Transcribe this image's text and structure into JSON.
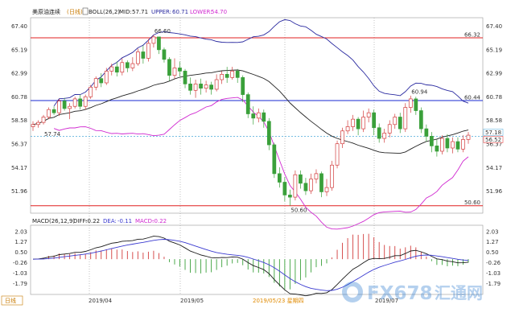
{
  "header": {
    "symbol": "美原油连续",
    "period": "日线",
    "boll_label": "BOLL(26,2)",
    "mid_label": "MID:",
    "mid_value": "57.71",
    "upper_label": "UPPER:",
    "upper_value": "60.71",
    "lower_label": "LOWER:",
    "lower_value": "54.70"
  },
  "macd_header": {
    "label": "MACD(26,12,9)",
    "diff_label": "DIFF:",
    "diff_value": "-0.22",
    "dea_label": "DEA:",
    "dea_value": "-0.11",
    "macd_label": "MACD:",
    "macd_value": "-0.22"
  },
  "footer": {
    "period_button": "日线",
    "x_labels": [
      "2019/04",
      "2019/05",
      "2019/05/23 星期四",
      "2019/07"
    ]
  },
  "watermark": {
    "text": "FX678",
    "cn": "汇通网"
  },
  "colors": {
    "up": "#d23c3c",
    "down": "#3aa03a",
    "mid": "#222222",
    "upper": "#2a2aa0",
    "lower": "#d028d0",
    "red_line": "#e02020",
    "blue_line": "#1a2ad0",
    "dotted": "#4aa8d8",
    "diff": "#1a1a1a",
    "dea": "#3a3ad0"
  },
  "chart_data": [
    {
      "type": "candlestick",
      "y_axis_ticks": [
        "67.40",
        "65.19",
        "62.99",
        "60.78",
        "58.58",
        "56.37",
        "54.17",
        "51.96"
      ],
      "y_left_ticks": [
        "67.40",
        "65.19",
        "62.99",
        "60.78",
        "58.58",
        "56.37",
        "54.17",
        "51.96"
      ],
      "ylim": [
        49.9,
        68.2
      ],
      "horizontal_lines": [
        {
          "value": 66.32,
          "label": "66.32",
          "color": "red"
        },
        {
          "value": 60.44,
          "label": "60.44",
          "color": "blue"
        },
        {
          "value": 50.6,
          "label": "50.60",
          "color": "red"
        }
      ],
      "current_price": {
        "value": 57.1,
        "labels": [
          "57.18",
          "56.52"
        ]
      },
      "annotations": [
        {
          "text": "66.60",
          "value": 66.6
        },
        {
          "text": "57.74",
          "value": 57.74
        },
        {
          "text": "50.60",
          "value": 50.6
        },
        {
          "text": "60.94",
          "value": 60.94
        }
      ],
      "candles": [
        [
          58.0,
          58.2,
          57.6,
          58.5
        ],
        [
          58.2,
          58.4,
          57.9,
          58.6
        ],
        [
          58.4,
          58.9,
          58.2,
          59.1
        ],
        [
          58.9,
          59.6,
          58.7,
          59.8
        ],
        [
          59.6,
          59.3,
          59.1,
          59.9
        ],
        [
          59.3,
          60.4,
          59.0,
          60.6
        ],
        [
          60.4,
          59.7,
          59.5,
          60.7
        ],
        [
          59.7,
          59.9,
          58.7,
          60.2
        ],
        [
          59.9,
          60.6,
          59.7,
          60.8
        ],
        [
          60.6,
          59.9,
          59.6,
          61.0
        ],
        [
          59.9,
          60.8,
          59.6,
          61.0
        ],
        [
          60.8,
          61.7,
          60.6,
          61.9
        ],
        [
          61.7,
          62.5,
          61.4,
          62.7
        ],
        [
          62.5,
          62.1,
          61.7,
          63.0
        ],
        [
          62.1,
          63.2,
          61.9,
          63.5
        ],
        [
          63.2,
          63.6,
          62.8,
          63.9
        ],
        [
          63.6,
          63.1,
          62.7,
          64.1
        ],
        [
          63.1,
          64.0,
          62.8,
          64.4
        ],
        [
          64.0,
          63.5,
          63.1,
          64.2
        ],
        [
          63.5,
          63.9,
          63.2,
          64.5
        ],
        [
          63.9,
          65.0,
          63.7,
          65.3
        ],
        [
          65.0,
          64.4,
          63.9,
          65.6
        ],
        [
          64.4,
          65.8,
          64.1,
          66.2
        ],
        [
          65.8,
          66.4,
          65.4,
          66.6
        ],
        [
          66.4,
          65.2,
          64.8,
          66.3
        ],
        [
          65.2,
          64.3,
          64.0,
          65.4
        ],
        [
          64.3,
          62.8,
          62.3,
          64.5
        ],
        [
          62.8,
          63.5,
          62.5,
          64.4
        ],
        [
          63.5,
          63.2,
          62.7,
          64.1
        ],
        [
          63.2,
          62.0,
          61.6,
          63.4
        ],
        [
          62.0,
          61.4,
          61.0,
          62.6
        ],
        [
          61.4,
          62.0,
          60.7,
          62.4
        ],
        [
          62.0,
          61.6,
          61.0,
          62.5
        ],
        [
          61.6,
          61.9,
          61.2,
          62.3
        ],
        [
          61.9,
          61.5,
          61.0,
          62.2
        ],
        [
          61.5,
          62.4,
          61.3,
          62.9
        ],
        [
          62.4,
          62.9,
          62.0,
          63.2
        ],
        [
          62.9,
          62.6,
          62.1,
          63.6
        ],
        [
          62.6,
          63.2,
          62.4,
          63.6
        ],
        [
          63.2,
          62.6,
          62.1,
          63.4
        ],
        [
          62.6,
          61.0,
          60.3,
          62.8
        ],
        [
          61.0,
          59.2,
          58.8,
          61.2
        ],
        [
          59.2,
          58.8,
          58.2,
          59.9
        ],
        [
          58.8,
          59.3,
          58.4,
          59.7
        ],
        [
          59.3,
          58.5,
          57.9,
          59.6
        ],
        [
          58.5,
          56.3,
          55.8,
          58.8
        ],
        [
          56.3,
          53.6,
          53.2,
          56.5
        ],
        [
          53.6,
          52.8,
          52.3,
          54.2
        ],
        [
          52.8,
          51.6,
          51.0,
          53.3
        ],
        [
          51.6,
          51.4,
          50.6,
          52.1
        ],
        [
          51.4,
          53.5,
          51.1,
          53.9
        ],
        [
          53.5,
          52.7,
          52.2,
          53.9
        ],
        [
          52.7,
          52.0,
          51.6,
          53.2
        ],
        [
          52.0,
          53.1,
          51.7,
          53.6
        ],
        [
          53.1,
          53.6,
          52.7,
          54.0
        ],
        [
          53.6,
          51.9,
          51.4,
          53.8
        ],
        [
          51.9,
          52.3,
          51.5,
          53.1
        ],
        [
          52.3,
          54.4,
          52.0,
          54.8
        ],
        [
          54.4,
          56.4,
          54.1,
          56.7
        ],
        [
          56.4,
          57.6,
          56.0,
          57.9
        ],
        [
          57.6,
          58.0,
          57.3,
          58.6
        ],
        [
          58.0,
          58.7,
          57.6,
          59.1
        ],
        [
          58.7,
          57.8,
          57.2,
          58.9
        ],
        [
          57.8,
          58.9,
          57.5,
          59.5
        ],
        [
          58.9,
          59.3,
          58.4,
          59.7
        ],
        [
          59.3,
          57.9,
          57.2,
          59.6
        ],
        [
          57.9,
          56.9,
          56.5,
          58.3
        ],
        [
          56.9,
          57.4,
          56.5,
          57.8
        ],
        [
          57.4,
          58.2,
          57.0,
          58.6
        ],
        [
          58.2,
          58.9,
          57.8,
          59.2
        ],
        [
          58.9,
          57.8,
          57.4,
          59.3
        ],
        [
          57.8,
          59.8,
          57.5,
          60.2
        ],
        [
          59.8,
          60.6,
          59.3,
          60.9
        ],
        [
          60.6,
          59.5,
          59.1,
          60.8
        ],
        [
          59.5,
          57.8,
          57.4,
          59.8
        ],
        [
          57.8,
          57.1,
          56.6,
          58.2
        ],
        [
          57.1,
          56.2,
          55.6,
          57.5
        ],
        [
          56.2,
          55.7,
          55.2,
          56.8
        ],
        [
          55.7,
          56.9,
          55.4,
          57.2
        ],
        [
          56.9,
          56.0,
          55.6,
          57.3
        ],
        [
          56.0,
          56.6,
          55.5,
          57.0
        ],
        [
          56.6,
          55.9,
          55.6,
          57.0
        ],
        [
          55.9,
          56.8,
          55.6,
          57.2
        ],
        [
          56.8,
          57.2,
          56.4,
          57.5
        ]
      ]
    },
    {
      "type": "macd",
      "y_axis_ticks": [
        "2.03",
        "1.27",
        "0.50",
        "-0.26",
        "-1.03",
        "-1.79"
      ],
      "ylim": [
        -2.6,
        2.5
      ]
    }
  ]
}
